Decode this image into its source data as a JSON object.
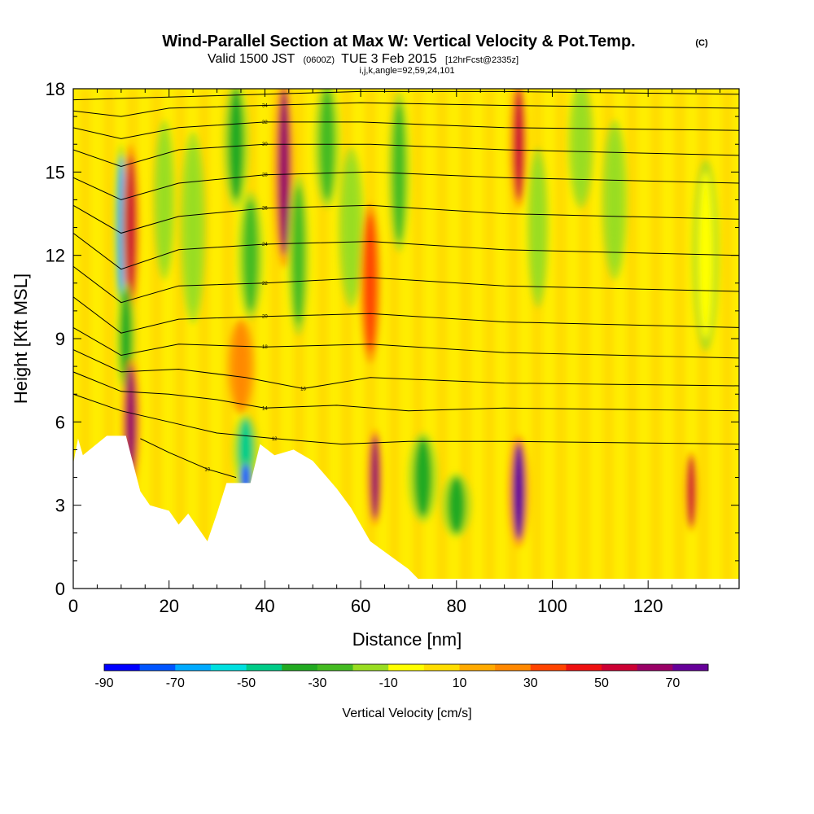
{
  "titles": {
    "main": "Wind-Parallel Section at Max W: Vertical Velocity & Pot.Temp.",
    "main_mark": "(C)",
    "valid_prefix": "Valid 1500 JST",
    "valid_z": "(0600Z)",
    "valid_date": "TUE 3 Feb 2015",
    "valid_fcst": "[12hrFcst@2335z]",
    "indices": "i,j,k,angle=92,59,24,101"
  },
  "colorbar": {
    "title": "Vertical Velocity [cm/s]",
    "tick_labels": [
      "-90",
      "-70",
      "-50",
      "-30",
      "-10",
      "10",
      "30",
      "50",
      "70"
    ],
    "colors": [
      "#0000ff",
      "#0055ff",
      "#00aaff",
      "#00e0e0",
      "#00cc88",
      "#22aa22",
      "#44bb22",
      "#99dd22",
      "#ffff00",
      "#ffdd00",
      "#ffaa00",
      "#ff8800",
      "#ff4400",
      "#ee1111",
      "#cc0033",
      "#990066",
      "#660099"
    ]
  },
  "chart_data": {
    "type": "heatmap",
    "title": "Wind-Parallel Section at Max W: Vertical Velocity & Pot.Temp.",
    "xlabel": "Distance [nm]",
    "ylabel": "Height [Kft MSL]",
    "xlim": [
      0,
      139
    ],
    "ylim": [
      0,
      18
    ],
    "x_ticks": [
      "0",
      "20",
      "40",
      "60",
      "80",
      "100",
      "120"
    ],
    "y_ticks": [
      "0",
      "3",
      "6",
      "9",
      "12",
      "15",
      "18"
    ],
    "background_color": "#ffee00",
    "terrain_profile_nm_kft": [
      [
        0,
        4.5
      ],
      [
        1,
        5.4
      ],
      [
        2,
        4.8
      ],
      [
        7,
        5.5
      ],
      [
        11,
        5.5
      ],
      [
        14,
        3.5
      ],
      [
        16,
        3.0
      ],
      [
        20,
        2.8
      ],
      [
        22,
        2.3
      ],
      [
        24,
        2.7
      ],
      [
        26,
        2.2
      ],
      [
        28,
        1.7
      ],
      [
        30,
        2.7
      ],
      [
        32,
        3.8
      ],
      [
        35,
        3.8
      ],
      [
        37,
        3.8
      ],
      [
        39,
        5.2
      ],
      [
        42,
        4.8
      ],
      [
        46,
        5.0
      ],
      [
        50,
        4.6
      ],
      [
        55,
        3.6
      ],
      [
        58,
        2.9
      ],
      [
        62,
        1.7
      ],
      [
        66,
        1.2
      ],
      [
        70,
        0.7
      ],
      [
        72,
        0.35
      ],
      [
        139,
        0.35
      ]
    ],
    "velocity_cells": [
      {
        "x": 10,
        "y": 13,
        "w": 1.6,
        "h": 5.2,
        "v": -65
      },
      {
        "x": 12,
        "y": 13,
        "w": 2.0,
        "h": 5.2,
        "v": 50
      },
      {
        "x": 11,
        "y": 9,
        "w": 2.2,
        "h": 3.5,
        "v": -40
      },
      {
        "x": 12,
        "y": 6,
        "w": 2.2,
        "h": 4.0,
        "v": 60
      },
      {
        "x": 19,
        "y": 14,
        "w": 2.5,
        "h": 5.0,
        "v": -20
      },
      {
        "x": 25,
        "y": 13,
        "w": 3.0,
        "h": 6.0,
        "v": -15
      },
      {
        "x": 34,
        "y": 16,
        "w": 3.0,
        "h": 4.0,
        "v": -35
      },
      {
        "x": 37,
        "y": 12,
        "w": 3.0,
        "h": 4.0,
        "v": -30
      },
      {
        "x": 35,
        "y": 8,
        "w": 3.0,
        "h": 3.0,
        "v": 25
      },
      {
        "x": 36,
        "y": 5,
        "w": 3.0,
        "h": 2.2,
        "v": -50
      },
      {
        "x": 36,
        "y": 4,
        "w": 2.0,
        "h": 1.0,
        "v": -80
      },
      {
        "x": 44,
        "y": 15,
        "w": 2.4,
        "h": 6.0,
        "v": 60
      },
      {
        "x": 47,
        "y": 12,
        "w": 2.5,
        "h": 5.0,
        "v": -25
      },
      {
        "x": 53,
        "y": 16,
        "w": 3.0,
        "h": 4.0,
        "v": -30
      },
      {
        "x": 58,
        "y": 13,
        "w": 3.0,
        "h": 5.0,
        "v": -20
      },
      {
        "x": 63,
        "y": 4,
        "w": 1.8,
        "h": 3.0,
        "v": 65
      },
      {
        "x": 62,
        "y": 11,
        "w": 2.5,
        "h": 5.0,
        "v": 30
      },
      {
        "x": 68,
        "y": 15,
        "w": 2.5,
        "h": 5.0,
        "v": -25
      },
      {
        "x": 73,
        "y": 4,
        "w": 3.5,
        "h": 2.8,
        "v": -35
      },
      {
        "x": 80,
        "y": 3,
        "w": 3.5,
        "h": 2.0,
        "v": -40
      },
      {
        "x": 93,
        "y": 3.5,
        "w": 2.5,
        "h": 3.5,
        "v": 75
      },
      {
        "x": 93,
        "y": 16,
        "w": 2.0,
        "h": 4.0,
        "v": 50
      },
      {
        "x": 97,
        "y": 13,
        "w": 2.5,
        "h": 5.0,
        "v": -20
      },
      {
        "x": 106,
        "y": 16,
        "w": 3.0,
        "h": 4.0,
        "v": -20
      },
      {
        "x": 113,
        "y": 14,
        "w": 3.0,
        "h": 5.0,
        "v": -15
      },
      {
        "x": 129,
        "y": 3.5,
        "w": 1.5,
        "h": 2.5,
        "v": 55
      },
      {
        "x": 132,
        "y": 12,
        "w": 3.0,
        "h": 6.0,
        "v": -10
      }
    ],
    "theta_contours": [
      {
        "label": "",
        "points": [
          [
            0,
            17.6
          ],
          [
            20,
            17.7
          ],
          [
            40,
            17.8
          ],
          [
            60,
            17.9
          ],
          [
            90,
            17.9
          ],
          [
            139,
            17.8
          ]
        ]
      },
      {
        "label": "34",
        "points": [
          [
            0,
            17.2
          ],
          [
            10,
            17.0
          ],
          [
            20,
            17.3
          ],
          [
            40,
            17.4
          ],
          [
            60,
            17.5
          ],
          [
            90,
            17.4
          ],
          [
            139,
            17.3
          ]
        ]
      },
      {
        "label": "32",
        "points": [
          [
            0,
            16.6
          ],
          [
            10,
            16.2
          ],
          [
            22,
            16.6
          ],
          [
            40,
            16.8
          ],
          [
            60,
            16.8
          ],
          [
            90,
            16.6
          ],
          [
            139,
            16.5
          ]
        ]
      },
      {
        "label": "30",
        "points": [
          [
            0,
            15.8
          ],
          [
            10,
            15.2
          ],
          [
            22,
            15.8
          ],
          [
            40,
            16.0
          ],
          [
            62,
            16.0
          ],
          [
            90,
            15.8
          ],
          [
            139,
            15.6
          ]
        ]
      },
      {
        "label": "28",
        "points": [
          [
            0,
            14.8
          ],
          [
            10,
            14.0
          ],
          [
            22,
            14.6
          ],
          [
            40,
            14.9
          ],
          [
            62,
            15.0
          ],
          [
            90,
            14.8
          ],
          [
            139,
            14.6
          ]
        ]
      },
      {
        "label": "26",
        "points": [
          [
            0,
            13.8
          ],
          [
            10,
            12.8
          ],
          [
            22,
            13.4
          ],
          [
            40,
            13.7
          ],
          [
            62,
            13.8
          ],
          [
            90,
            13.5
          ],
          [
            139,
            13.3
          ]
        ]
      },
      {
        "label": "24",
        "points": [
          [
            0,
            12.8
          ],
          [
            10,
            11.5
          ],
          [
            22,
            12.2
          ],
          [
            40,
            12.4
          ],
          [
            62,
            12.5
          ],
          [
            90,
            12.2
          ],
          [
            139,
            12.0
          ]
        ]
      },
      {
        "label": "22",
        "points": [
          [
            0,
            11.6
          ],
          [
            10,
            10.3
          ],
          [
            22,
            10.9
          ],
          [
            40,
            11.0
          ],
          [
            62,
            11.2
          ],
          [
            90,
            10.9
          ],
          [
            139,
            10.7
          ]
        ]
      },
      {
        "label": "20",
        "points": [
          [
            0,
            10.5
          ],
          [
            10,
            9.2
          ],
          [
            22,
            9.7
          ],
          [
            40,
            9.8
          ],
          [
            62,
            9.9
          ],
          [
            90,
            9.6
          ],
          [
            139,
            9.4
          ]
        ]
      },
      {
        "label": "18",
        "points": [
          [
            0,
            9.4
          ],
          [
            10,
            8.4
          ],
          [
            22,
            8.8
          ],
          [
            40,
            8.7
          ],
          [
            62,
            8.8
          ],
          [
            90,
            8.5
          ],
          [
            139,
            8.3
          ]
        ]
      },
      {
        "label": "16",
        "points": [
          [
            0,
            8.6
          ],
          [
            10,
            7.8
          ],
          [
            22,
            7.9
          ],
          [
            36,
            7.6
          ],
          [
            48,
            7.2
          ],
          [
            62,
            7.6
          ],
          [
            90,
            7.4
          ],
          [
            139,
            7.3
          ]
        ]
      },
      {
        "label": "14",
        "points": [
          [
            0,
            7.8
          ],
          [
            10,
            7.1
          ],
          [
            20,
            7.0
          ],
          [
            30,
            6.8
          ],
          [
            40,
            6.5
          ],
          [
            55,
            6.6
          ],
          [
            70,
            6.4
          ],
          [
            90,
            6.5
          ],
          [
            139,
            6.4
          ]
        ]
      },
      {
        "label": "12",
        "points": [
          [
            0,
            7.0
          ],
          [
            10,
            6.4
          ],
          [
            20,
            6.0
          ],
          [
            30,
            5.6
          ],
          [
            42,
            5.4
          ],
          [
            56,
            5.2
          ],
          [
            70,
            5.3
          ],
          [
            90,
            5.3
          ],
          [
            139,
            5.2
          ]
        ]
      },
      {
        "label": "10",
        "points": [
          [
            14,
            5.4
          ],
          [
            20,
            4.9
          ],
          [
            28,
            4.3
          ],
          [
            34,
            4.0
          ]
        ]
      }
    ]
  }
}
